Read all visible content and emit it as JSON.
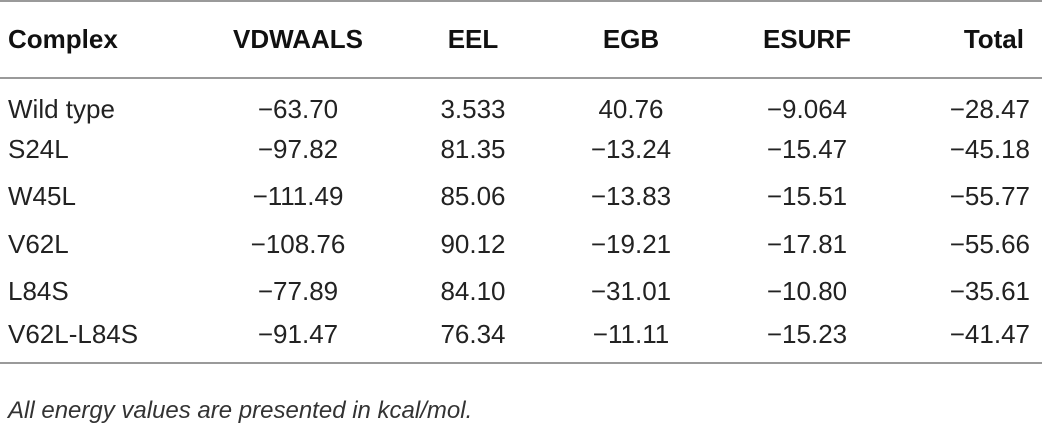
{
  "table": {
    "headers": [
      "Complex",
      "VDWAALS",
      "EEL",
      "EGB",
      "ESURF",
      "Total"
    ],
    "rows": [
      [
        "Wild type",
        "−63.70",
        "3.533",
        "40.76",
        "−9.064",
        "−28.47"
      ],
      [
        "S24L",
        "−97.82",
        "81.35",
        "−13.24",
        "−15.47",
        "−45.18"
      ],
      [
        "W45L",
        "−111.49",
        "85.06",
        "−13.83",
        "−15.51",
        "−55.77"
      ],
      [
        "V62L",
        "−108.76",
        "90.12",
        "−19.21",
        "−17.81",
        "−55.66"
      ],
      [
        "L84S",
        "−77.89",
        "84.10",
        "−31.01",
        "−10.80",
        "−35.61"
      ],
      [
        "V62L-L84S",
        "−91.47",
        "76.34",
        "−11.11",
        "−15.23",
        "−41.47"
      ]
    ]
  },
  "footnote": "All energy values are presented in kcal/mol."
}
